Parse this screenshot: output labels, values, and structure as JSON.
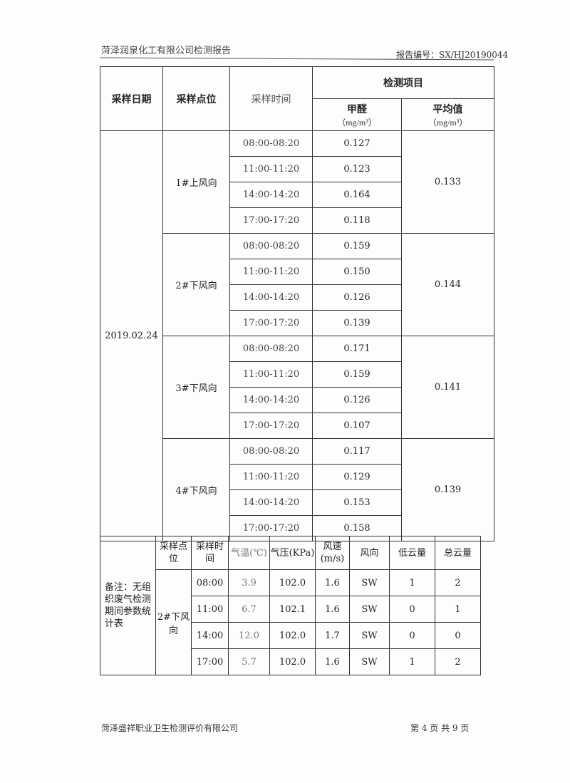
{
  "header": {
    "company": "菏泽润泉化工有限公司检测报告",
    "report_no": "报告编号：SX/HJ20190044"
  },
  "table": {
    "headers": {
      "date": "采样日期",
      "point": "采样点位",
      "time": "采样时间",
      "items": "检测项目",
      "formaldehyde": "甲醛",
      "avg": "平均值",
      "unit": "（mg/m³）"
    },
    "date": "2019.02.24",
    "groups": [
      {
        "point": "1#上风向",
        "avg": "0.133",
        "rows": [
          [
            "08:00-08:20",
            "0.127"
          ],
          [
            "11:00-11:20",
            "0.123"
          ],
          [
            "14:00-14:20",
            "0.164"
          ],
          [
            "17:00-17:20",
            "0.118"
          ]
        ]
      },
      {
        "point": "2#下风向",
        "avg": "0.144",
        "rows": [
          [
            "08:00-08:20",
            "0.159"
          ],
          [
            "11:00-11:20",
            "0.150"
          ],
          [
            "14:00-14:20",
            "0.126"
          ],
          [
            "17:00-17:20",
            "0.139"
          ]
        ]
      },
      {
        "point": "3#下风向",
        "avg": "0.141",
        "rows": [
          [
            "08:00-08:20",
            "0.171"
          ],
          [
            "11:00-11:20",
            "0.159"
          ],
          [
            "14:00-14:20",
            "0.126"
          ],
          [
            "17:00-17:20",
            "0.107"
          ]
        ]
      },
      {
        "point": "4#下风向",
        "avg": "0.139",
        "rows": [
          [
            "08:00-08:20",
            "0.117"
          ],
          [
            "11:00-11:20",
            "0.129"
          ],
          [
            "14:00-14:20",
            "0.153"
          ],
          [
            "17:00-17:20",
            "0.158"
          ]
        ]
      }
    ]
  },
  "params": {
    "note": "备注：无组织废气检测期间参数统计表",
    "headers": [
      "采样点位",
      "采样时间",
      "气温(℃)",
      "气压(KPa)",
      "风速(m/s)",
      "风向",
      "低云量",
      "总云量"
    ],
    "point": "2#下风向",
    "rows": [
      [
        "08:00",
        "3.9",
        "102.0",
        "1.6",
        "SW",
        "1",
        "2"
      ],
      [
        "11:00",
        "6.7",
        "102.1",
        "1.6",
        "SW",
        "0",
        "1"
      ],
      [
        "14:00",
        "12.0",
        "102.0",
        "1.7",
        "SW",
        "0",
        "0"
      ],
      [
        "17:00",
        "5.7",
        "102.0",
        "1.6",
        "SW",
        "1",
        "2"
      ]
    ]
  },
  "footer": {
    "org": "菏泽盛祥职业卫生检测评价有限公司",
    "page": "第 4 页 共 9 页"
  }
}
